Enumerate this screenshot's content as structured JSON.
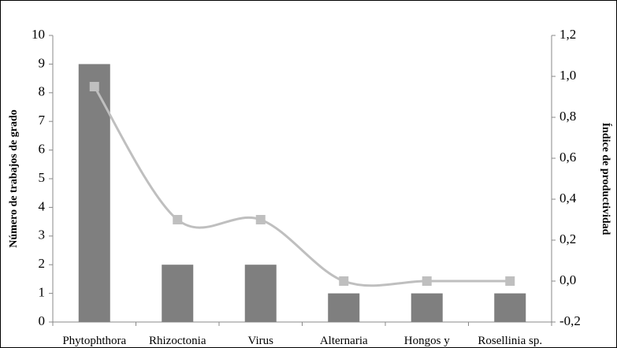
{
  "chart_data": {
    "type": "bar-line",
    "categories": [
      "Phytophthora\ninfestans",
      "Rhizoctonia\nSolani",
      "Virus",
      "Alternaria\nsolani",
      "Hongos y\nbacterias",
      "Rosellinia sp."
    ],
    "series": [
      {
        "name": "Número de trabajos de grado",
        "type": "bar",
        "color": "#7f7f7f",
        "values": [
          9,
          2,
          2,
          1,
          1,
          1
        ]
      },
      {
        "name": "Índice de productividad",
        "type": "line",
        "axis": "y2",
        "color": "#bfbfbf",
        "smooth": true,
        "values": [
          0.95,
          0.3,
          0.3,
          0.0,
          0.0,
          0.0
        ]
      }
    ],
    "ylabel": "Número de trabajos de grado",
    "y2label": "Índice de productividad",
    "ylim": [
      0,
      10
    ],
    "yticks": [
      0,
      1,
      2,
      3,
      4,
      5,
      6,
      7,
      8,
      9,
      10
    ],
    "y2lim": [
      -0.2,
      1.2
    ],
    "y2ticks": [
      {
        "value": -0.2,
        "label": "-0,2"
      },
      {
        "value": 0.0,
        "label": "0,0"
      },
      {
        "value": 0.2,
        "label": "0,2"
      },
      {
        "value": 0.4,
        "label": "0,4"
      },
      {
        "value": 0.6,
        "label": "0,6"
      },
      {
        "value": 0.8,
        "label": "0,8"
      },
      {
        "value": 1.0,
        "label": "1,0"
      },
      {
        "value": 1.2,
        "label": "1,2"
      }
    ]
  }
}
